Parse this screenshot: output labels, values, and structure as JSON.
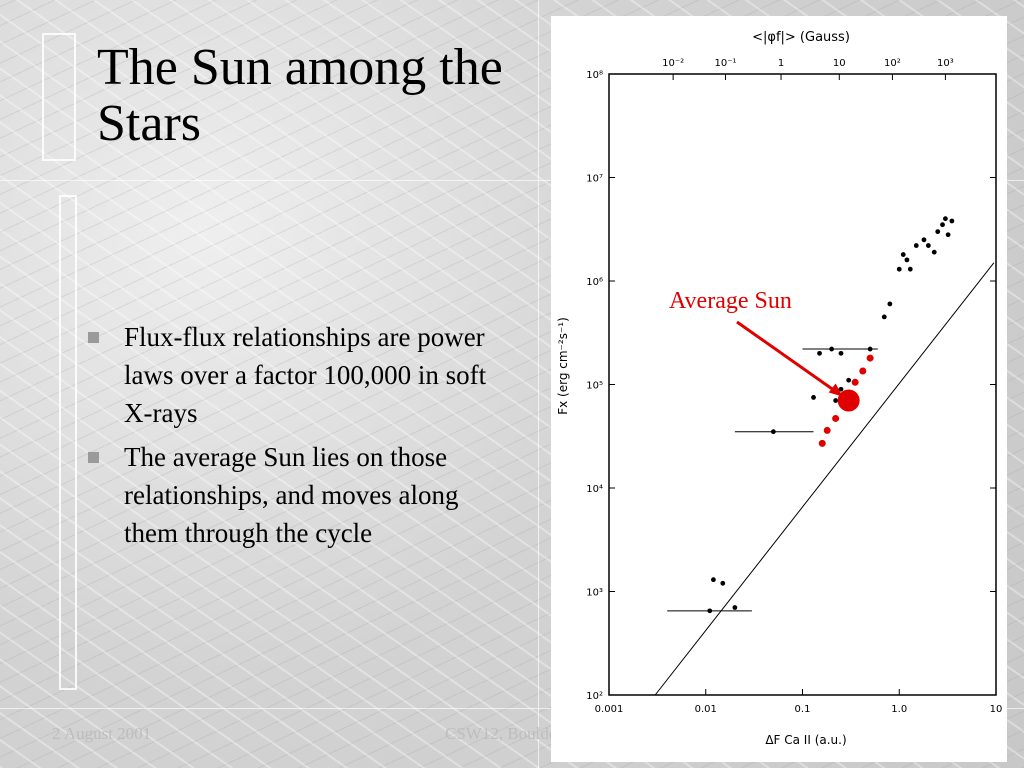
{
  "slide": {
    "title": "The Sun among the Stars",
    "bullets": [
      "Flux-flux relationships are power laws over a factor 100,000 in soft X-rays",
      "The average Sun lies on those relationships, and moves along them through the cycle"
    ],
    "footer_left": "2 August 2001",
    "footer_right": "CSW12, Boulder"
  },
  "figure": {
    "top_axis_label": "<|φf|>  (Gauss)",
    "top_ticks": [
      "10⁻²",
      "10⁻¹",
      "1",
      "10",
      "10²",
      "10³"
    ],
    "y_axis_label": "Fx  (erg cm⁻²s⁻¹)",
    "y_ticks": [
      "10⁸",
      "10⁷",
      "10⁶",
      "10⁵",
      "10⁴",
      "10³",
      "10²"
    ],
    "x_axis_label": "ΔF Ca II  (a.u.)",
    "x_ticks": [
      "0.001",
      "0.01",
      "0.1",
      "1.0",
      "10"
    ],
    "callout": "Average Sun",
    "colors": {
      "callout": "#e00000",
      "points": "#000000"
    }
  },
  "chart_data": {
    "type": "scatter",
    "x_scale": "log",
    "y_scale": "log",
    "xlim": [
      0.001,
      10
    ],
    "ylim": [
      100,
      100000000
    ],
    "xlabel": "ΔF Ca II (a.u.)",
    "ylabel": "Fx (erg cm⁻²s⁻¹)",
    "top_xlabel": "<|φf|> (Gauss)",
    "fit_line": [
      [
        0.003,
        100
      ],
      [
        9.5,
        1500000
      ]
    ],
    "series": [
      {
        "values": [
          [
            0.011,
            650
          ],
          [
            0.012,
            1300
          ],
          [
            0.015,
            1200
          ],
          [
            0.02,
            700
          ],
          [
            0.05,
            35000
          ],
          [
            0.13,
            75000
          ],
          [
            0.15,
            200000
          ],
          [
            0.2,
            220000
          ],
          [
            0.25,
            200000
          ],
          [
            0.25,
            90000
          ],
          [
            0.22,
            70000
          ],
          [
            0.3,
            110000
          ],
          [
            0.5,
            220000
          ],
          [
            0.7,
            450000
          ],
          [
            0.8,
            600000
          ],
          [
            1.0,
            1300000
          ],
          [
            1.1,
            1800000
          ],
          [
            1.2,
            1600000
          ],
          [
            1.3,
            1300000
          ],
          [
            1.5,
            2200000
          ],
          [
            1.8,
            2500000
          ],
          [
            2.0,
            2200000
          ],
          [
            2.3,
            1900000
          ],
          [
            2.5,
            3000000
          ],
          [
            2.8,
            3500000
          ],
          [
            3.0,
            4000000
          ],
          [
            3.2,
            2800000
          ],
          [
            3.5,
            3800000
          ]
        ]
      },
      {
        "values": [
          [
            0.16,
            27000
          ],
          [
            0.18,
            36000
          ],
          [
            0.22,
            47000
          ],
          [
            0.28,
            75000
          ],
          [
            0.35,
            105000
          ],
          [
            0.42,
            135000
          ],
          [
            0.5,
            180000
          ]
        ]
      }
    ],
    "highlight": [
      0.3,
      70000
    ]
  }
}
